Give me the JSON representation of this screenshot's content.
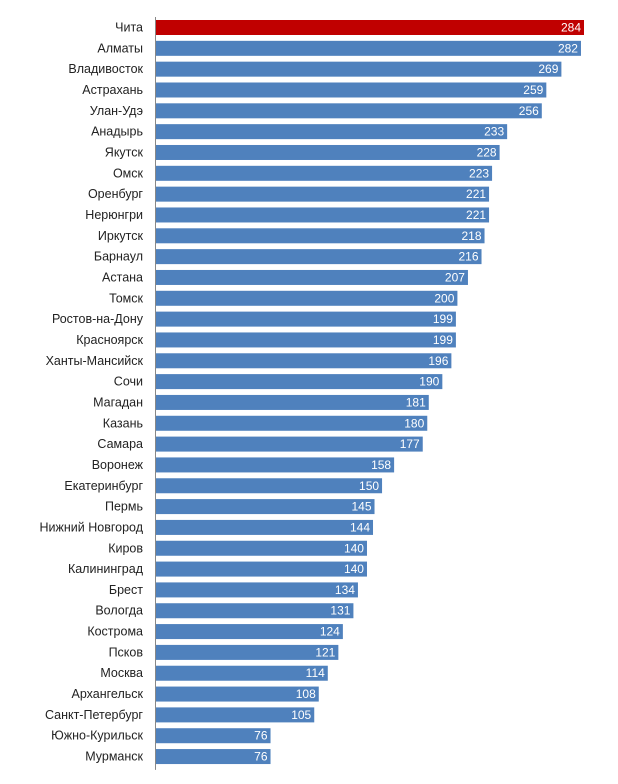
{
  "chart_data": {
    "type": "bar",
    "orientation": "horizontal",
    "title": "",
    "xlabel": "",
    "ylabel": "",
    "xlim": [
      0,
      284
    ],
    "grid": false,
    "legend": "none",
    "categories": [
      "Чита",
      "Алматы",
      "Владивосток",
      "Астрахань",
      "Улан-Удэ",
      "Анадырь",
      "Якутск",
      "Омск",
      "Оренбург",
      "Нерюнгри",
      "Иркутск",
      "Барнаул",
      "Астана",
      "Томск",
      "Ростов-на-Дону",
      "Красноярск",
      "Ханты-Мансийск",
      "Сочи",
      "Магадан",
      "Казань",
      "Самара",
      "Воронеж",
      "Екатеринбург",
      "Пермь",
      "Нижний Новгород",
      "Киров",
      "Калининград",
      "Брест",
      "Вологда",
      "Кострома",
      "Псков",
      "Москва",
      "Архангельск",
      "Санкт-Петербург",
      "Южно-Курильск",
      "Мурманск"
    ],
    "values": [
      284,
      282,
      269,
      259,
      256,
      233,
      228,
      223,
      221,
      221,
      218,
      216,
      207,
      200,
      199,
      199,
      196,
      190,
      181,
      180,
      177,
      158,
      150,
      145,
      144,
      140,
      140,
      134,
      131,
      124,
      121,
      114,
      108,
      105,
      76,
      76
    ],
    "highlight_index": 0,
    "colors": {
      "bar": "#4f81bd",
      "highlight": "#c00000",
      "value_text": "#ffffff",
      "label_text": "#222222",
      "axis": "#888888"
    }
  }
}
